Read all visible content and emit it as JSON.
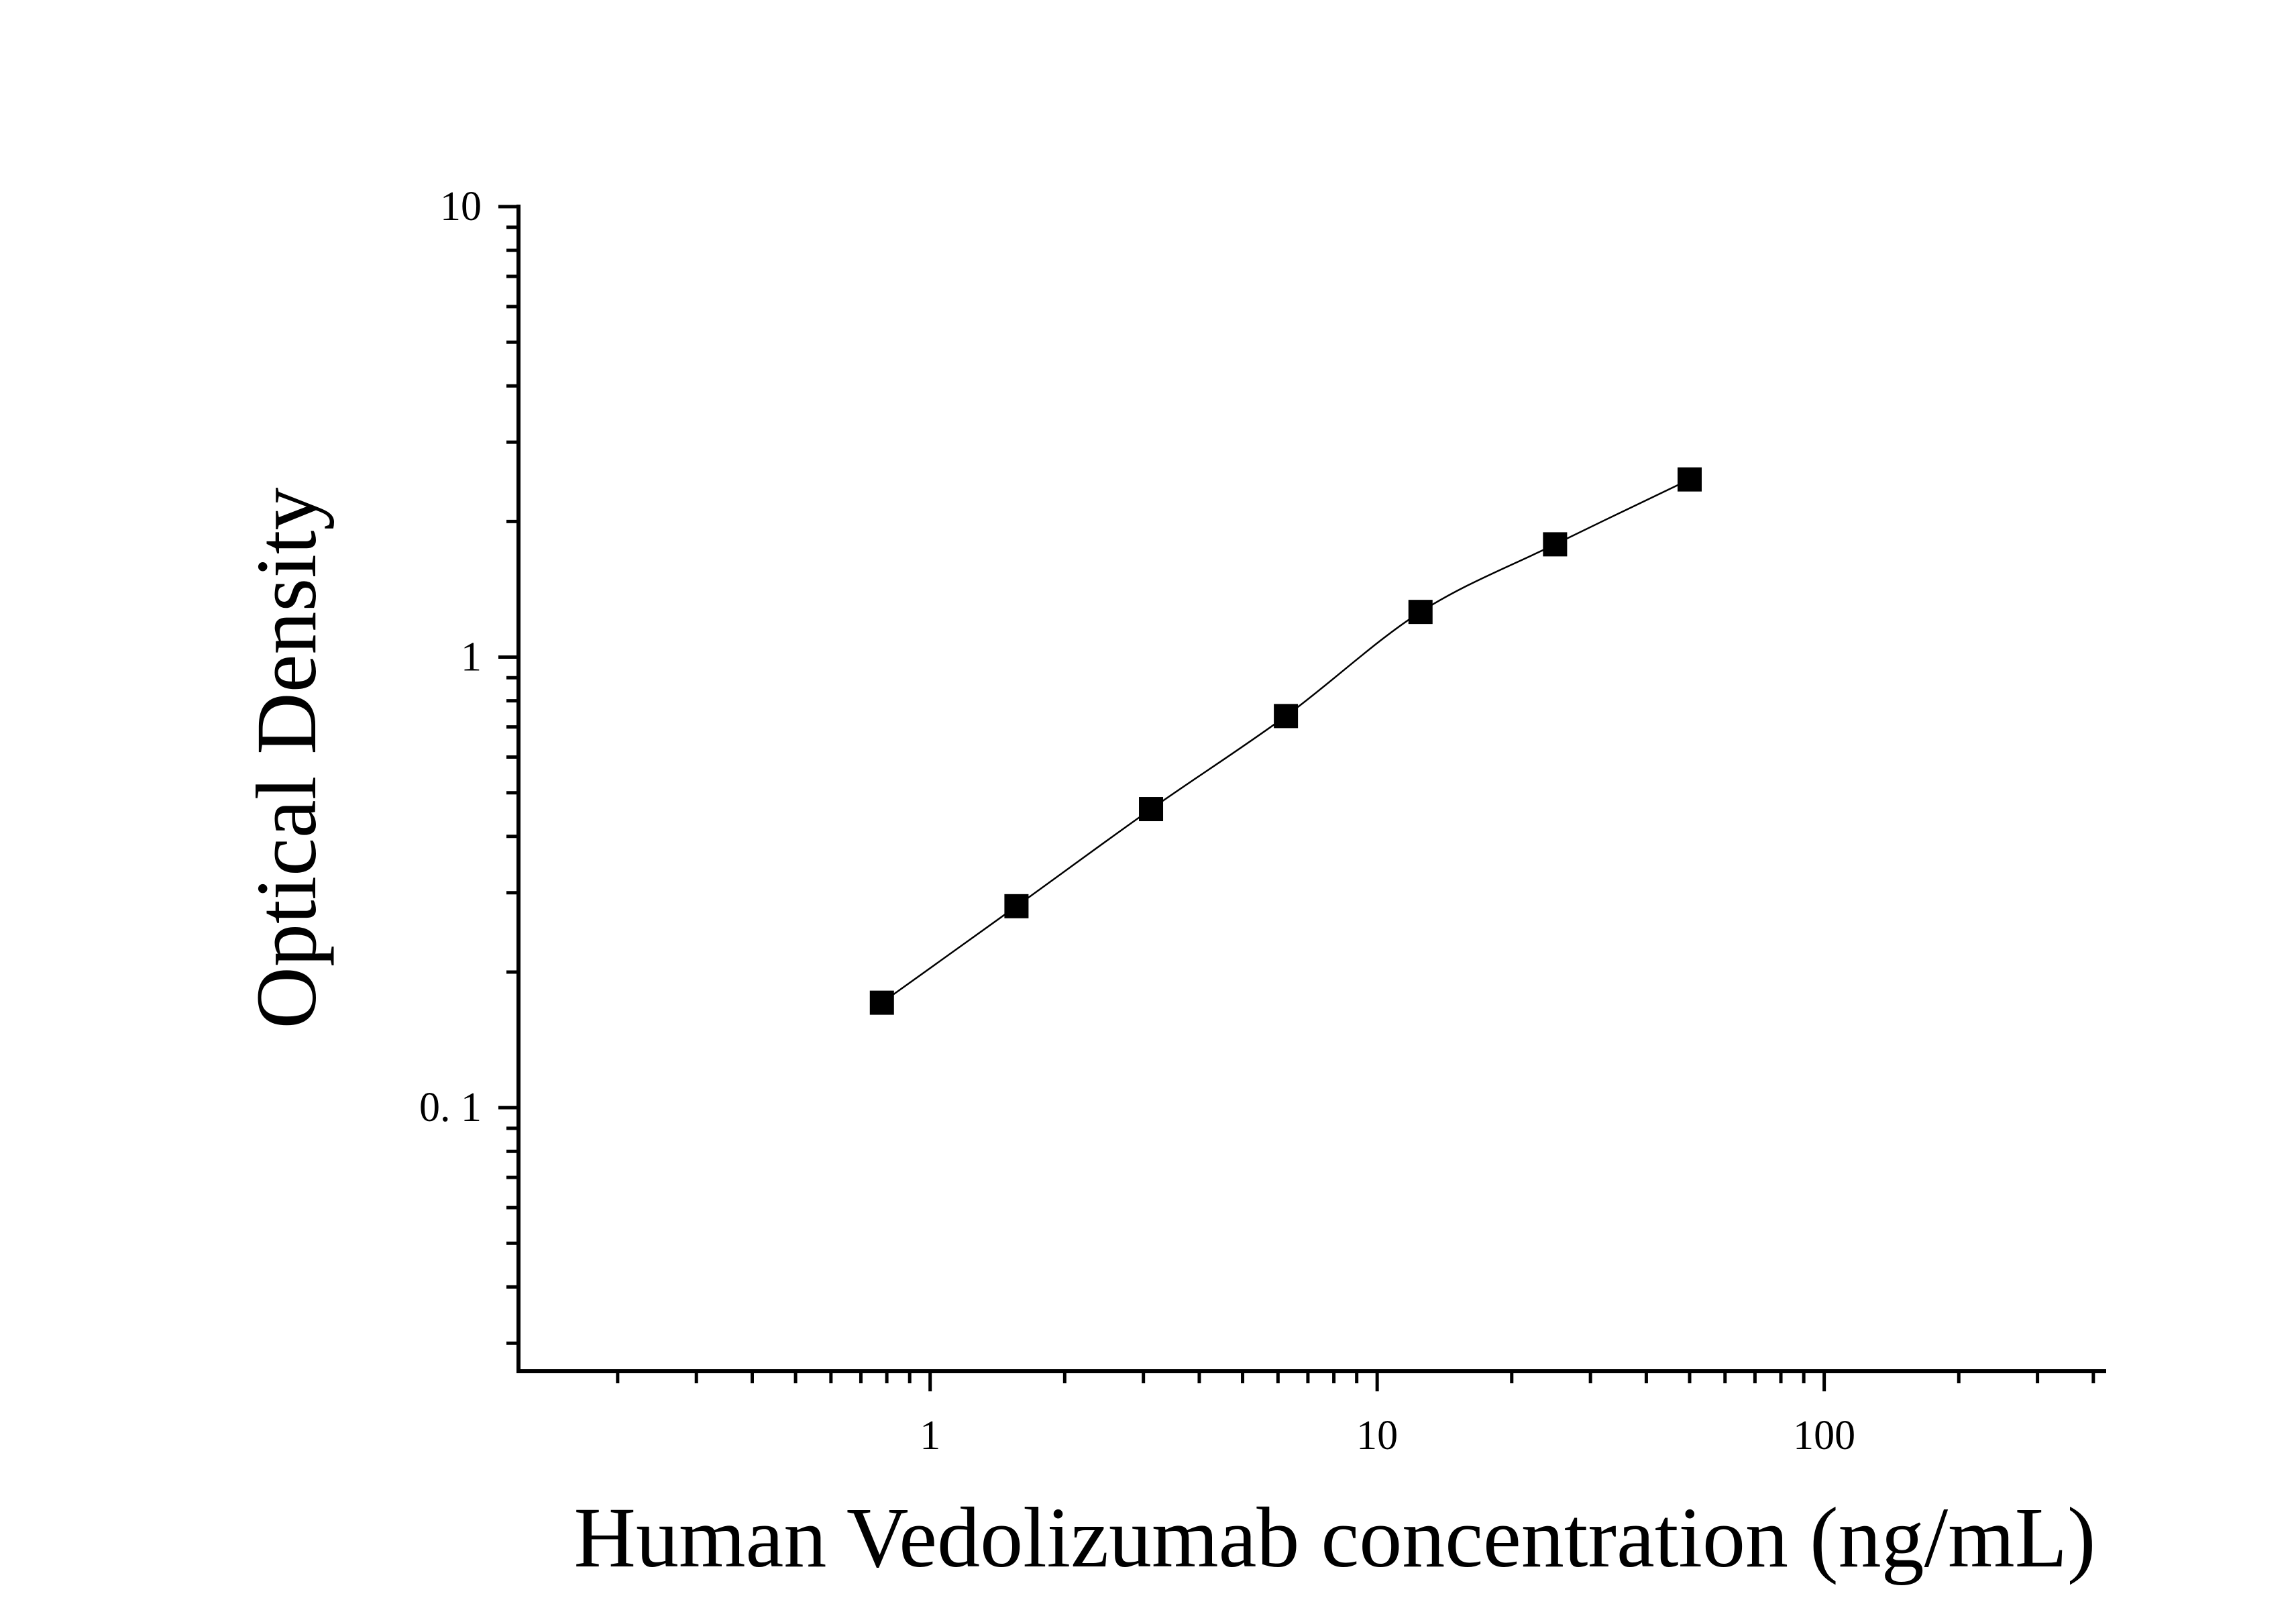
{
  "chart_data": {
    "type": "scatter",
    "title": "",
    "xlabel": "Human Vedolizumab concentration (ng/mL)",
    "ylabel": "Optical Density",
    "x_scale": "log",
    "y_scale": "log",
    "xlim": [
      0.12,
      420
    ],
    "ylim": [
      0.026,
      10
    ],
    "x_ticks": [
      1,
      10,
      100
    ],
    "x_tick_labels": [
      "1",
      "10",
      "100"
    ],
    "y_ticks": [
      0.1,
      1,
      10
    ],
    "y_tick_labels": [
      "0. 1",
      "1",
      "10"
    ],
    "grid": false,
    "legend": "none",
    "series": [
      {
        "x": [
          0.78,
          1.56,
          3.12,
          6.25,
          12.5,
          25,
          50
        ],
        "y": [
          0.171,
          0.28,
          0.46,
          0.74,
          1.26,
          1.78,
          2.48
        ],
        "marker": "square",
        "fit_line": true
      }
    ],
    "colors": {
      "marker": "#000000",
      "line": "#000000",
      "axes": "#000000"
    }
  }
}
